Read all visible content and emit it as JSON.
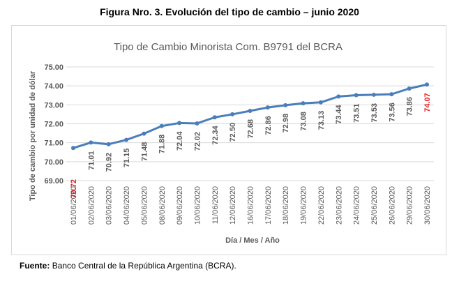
{
  "figure": {
    "title": "Figura Nro. 3. Evolución del tipo de cambio – junio 2020",
    "source_label": "Fuente:",
    "source_text": "Banco Central de la República Argentina (BCRA)."
  },
  "colors": {
    "line": "#4a7ebb",
    "grid": "#d9d9d9",
    "text": "#595959",
    "highlight": "#e31c23"
  },
  "chart_data": {
    "type": "line",
    "title": "Tipo de Cambio Minorista Com. B9791 del BCRA",
    "xlabel": "Día / Mes / Año",
    "ylabel": "Tipo de cambio por unidad de dólar",
    "ylim": [
      69.0,
      75.0
    ],
    "yticks": [
      "69.00",
      "70.00",
      "71.00",
      "72.00",
      "73.00",
      "74.00",
      "75.00"
    ],
    "grid": true,
    "categories": [
      "01/06/2020",
      "02/06/2020",
      "03/06/2020",
      "04/06/2020",
      "05/06/2020",
      "08/06/2020",
      "09/06/2020",
      "10/06/2020",
      "11/06/2020",
      "12/06/2020",
      "16/06/2020",
      "17/06/2020",
      "18/06/2020",
      "19/06/2020",
      "22/06/2020",
      "23/06/2020",
      "24/06/2020",
      "25/06/2020",
      "26/06/2020",
      "29/06/2020",
      "30/06/2020"
    ],
    "values": [
      70.72,
      71.01,
      70.92,
      71.15,
      71.48,
      71.88,
      72.04,
      72.02,
      72.34,
      72.5,
      72.68,
      72.86,
      72.98,
      73.08,
      73.13,
      73.44,
      73.51,
      73.53,
      73.56,
      73.86,
      74.07
    ],
    "labels": [
      "70.72",
      "71.01",
      "70.92",
      "71.15",
      "71.48",
      "71.88",
      "72.04",
      "72.02",
      "72.34",
      "72.50",
      "72.68",
      "72.86",
      "72.98",
      "73.08",
      "73.13",
      "73.44",
      "73.51",
      "73.53",
      "73.56",
      "73.86",
      "74.07"
    ],
    "highlighted_indices": [
      0,
      20
    ]
  }
}
